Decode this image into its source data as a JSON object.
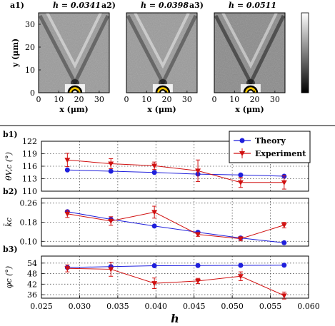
{
  "panel_a": {
    "images": [
      {
        "tag": "a1)",
        "h_label": "h = 0.0341"
      },
      {
        "tag": "a2)",
        "h_label": "h = 0.0398"
      },
      {
        "tag": "a3)",
        "h_label": "h = 0.0511"
      }
    ],
    "xlabel": "x (μm)",
    "ylabel": "y (μm)",
    "x_ticks": [
      "0",
      "10",
      "20",
      "30"
    ],
    "y_ticks": [
      "0",
      "10",
      "20",
      "30"
    ]
  },
  "chart_data": [
    {
      "type": "line",
      "tag": "b1)",
      "ylabel": "θV,c (°)",
      "ylim": [
        110,
        122
      ],
      "y_ticks": [
        110,
        113,
        116,
        119,
        122
      ],
      "xlim": [
        0.025,
        0.06
      ],
      "grid": true,
      "legend": "top-right",
      "series": [
        {
          "name": "Theory",
          "color": "#1f1fdc",
          "marker": "circle",
          "x": [
            0.0284,
            0.0341,
            0.0398,
            0.0455,
            0.0511,
            0.0568
          ],
          "y": [
            115.1,
            114.8,
            114.5,
            114.1,
            113.9,
            113.6
          ]
        },
        {
          "name": "Experiment",
          "color": "#d01010",
          "marker": "triangle-down",
          "x": [
            0.0284,
            0.0341,
            0.0398,
            0.0455,
            0.0511,
            0.0568
          ],
          "y": [
            117.5,
            116.6,
            116.1,
            114.9,
            112.1,
            112.1
          ],
          "err": [
            1.6,
            1.2,
            0.9,
            2.6,
            1.2,
            1.6
          ]
        }
      ]
    },
    {
      "type": "line",
      "tag": "b2)",
      "ylabel": "k̄c",
      "ylim": [
        0.08,
        0.28
      ],
      "y_ticks": [
        0.1,
        0.18,
        0.26
      ],
      "xlim": [
        0.025,
        0.06
      ],
      "grid": true,
      "series": [
        {
          "name": "Theory",
          "color": "#1f1fdc",
          "marker": "circle",
          "x": [
            0.0284,
            0.0341,
            0.0398,
            0.0455,
            0.0511,
            0.0568
          ],
          "y": [
            0.224,
            0.192,
            0.164,
            0.138,
            0.114,
            0.094
          ]
        },
        {
          "name": "Experiment",
          "color": "#d01010",
          "marker": "triangle-down",
          "x": [
            0.0284,
            0.0341,
            0.0398,
            0.0455,
            0.0511,
            0.0568
          ],
          "y": [
            0.215,
            0.185,
            0.222,
            0.129,
            0.111,
            0.168
          ],
          "err": [
            0.015,
            0.018,
            0.025,
            0.008,
            0.008,
            0.012
          ]
        }
      ]
    },
    {
      "type": "line",
      "tag": "b3)",
      "ylabel": "φc (°)",
      "ylim": [
        34,
        58
      ],
      "y_ticks": [
        36,
        42,
        48,
        54
      ],
      "x_ticks": [
        "0.025",
        "0.030",
        "0.035",
        "0.040",
        "0.045",
        "0.050",
        "0.055",
        "0.060"
      ],
      "xlabel": "h",
      "xlim": [
        0.025,
        0.06
      ],
      "grid": true,
      "series": [
        {
          "name": "Theory",
          "color": "#1f1fdc",
          "marker": "circle",
          "x": [
            0.0284,
            0.0341,
            0.0398,
            0.0455,
            0.0511,
            0.0568
          ],
          "y": [
            51.5,
            52.0,
            52.5,
            52.6,
            52.7,
            52.8
          ]
        },
        {
          "name": "Experiment",
          "color": "#d01010",
          "marker": "triangle-down",
          "x": [
            0.0284,
            0.0341,
            0.0398,
            0.0455,
            0.0511,
            0.0568
          ],
          "y": [
            51.0,
            50.5,
            42.5,
            43.8,
            46.5,
            35.5
          ],
          "err": [
            2.0,
            4.0,
            3.0,
            1.5,
            2.5,
            2.0
          ]
        }
      ]
    }
  ]
}
